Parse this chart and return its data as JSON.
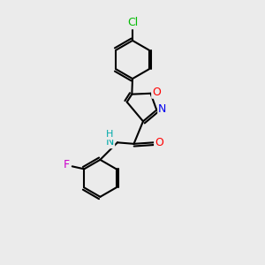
{
  "background_color": "#ebebeb",
  "bond_color": "#000000",
  "atom_colors": {
    "Cl": "#00bb00",
    "O": "#ff0000",
    "N_iso": "#0000ee",
    "N_amide": "#00aaaa",
    "H": "#00aaaa",
    "F": "#cc00cc",
    "C": "#000000"
  },
  "lw": 1.5
}
